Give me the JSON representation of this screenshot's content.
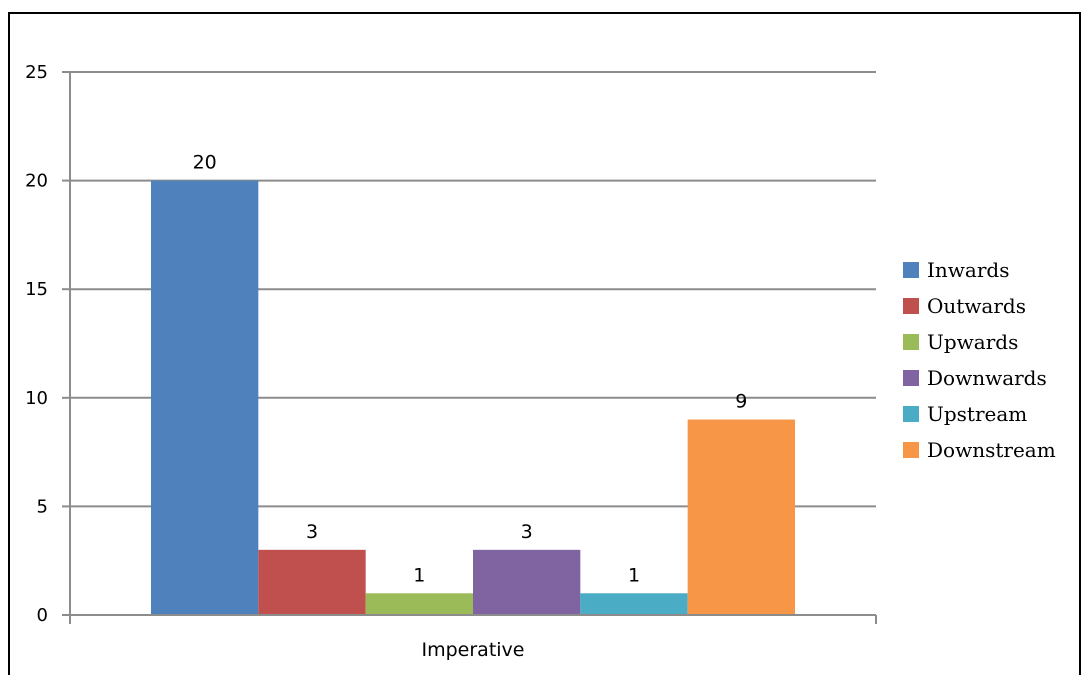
{
  "chart_data": {
    "type": "bar",
    "categories": [
      "Imperative"
    ],
    "series": [
      {
        "name": "Inwards",
        "values": [
          20
        ],
        "color": "#4f81bd"
      },
      {
        "name": "Outwards",
        "values": [
          3
        ],
        "color": "#c0504d"
      },
      {
        "name": "Upwards",
        "values": [
          1
        ],
        "color": "#9bbb59"
      },
      {
        "name": "Downwards",
        "values": [
          3
        ],
        "color": "#8064a2"
      },
      {
        "name": "Upstream",
        "values": [
          1
        ],
        "color": "#4bacc6"
      },
      {
        "name": "Downstream",
        "values": [
          9
        ],
        "color": "#f79646"
      }
    ],
    "data_labels": [
      "20",
      "3",
      "1",
      "3",
      "1",
      "9"
    ],
    "yticks": [
      "0",
      "5",
      "10",
      "15",
      "20",
      "25"
    ],
    "ylim": [
      0,
      25
    ],
    "grid": true,
    "legend_position": "right"
  }
}
